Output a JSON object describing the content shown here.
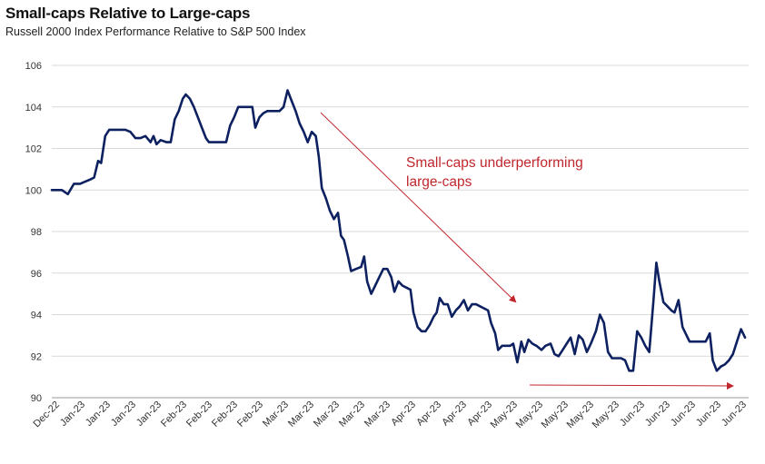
{
  "chart_data": {
    "type": "line",
    "title": "Small-caps Relative to Large-caps",
    "subtitle": "Russell 2000 Index Performance Relative to S&P 500 Index",
    "xlabel": "",
    "ylabel": "",
    "ylim": [
      90,
      106
    ],
    "yticks": [
      "106",
      "104",
      "102",
      "100",
      "98",
      "96",
      "94",
      "92",
      "90"
    ],
    "xticks": [
      "Dec-22",
      "Jan-23",
      "Jan-23",
      "Jan-23",
      "Jan-23",
      "Feb-23",
      "Feb-23",
      "Feb-23",
      "Feb-23",
      "Mar-23",
      "Mar-23",
      "Mar-23",
      "Mar-23",
      "Mar-23",
      "Apr-23",
      "Apr-23",
      "Apr-23",
      "Apr-23",
      "May-23",
      "May-23",
      "May-23",
      "May-23",
      "May-23",
      "Jun-23",
      "Jun-23",
      "Jun-23",
      "Jun-23",
      "Jun-23"
    ],
    "grid": true,
    "annotation": [
      "Small-caps underperforming",
      "large-caps"
    ],
    "colors": {
      "line": "#0d2060",
      "annotation": "#c0272d",
      "grid": "#d9d9d9"
    },
    "series": [
      {
        "values": [
          [
            0,
            100.0
          ],
          [
            0.5,
            100.0
          ],
          [
            1,
            100.0
          ],
          [
            1.6,
            99.8
          ],
          [
            2.2,
            100.3
          ],
          [
            2.8,
            100.3
          ],
          [
            3.3,
            100.4
          ],
          [
            3.8,
            100.5
          ],
          [
            4.2,
            100.6
          ],
          [
            4.6,
            101.4
          ],
          [
            4.9,
            101.3
          ],
          [
            5.3,
            102.6
          ],
          [
            5.7,
            102.9
          ],
          [
            6.3,
            102.9
          ],
          [
            6.8,
            102.9
          ],
          [
            7.3,
            102.9
          ],
          [
            7.8,
            102.8
          ],
          [
            8.3,
            102.5
          ],
          [
            8.8,
            102.5
          ],
          [
            9.3,
            102.6
          ],
          [
            9.8,
            102.3
          ],
          [
            10.1,
            102.6
          ],
          [
            10.4,
            102.2
          ],
          [
            10.8,
            102.4
          ],
          [
            11.4,
            102.3
          ],
          [
            11.8,
            102.3
          ],
          [
            12.2,
            103.4
          ],
          [
            12.6,
            103.8
          ],
          [
            13.0,
            104.4
          ],
          [
            13.3,
            104.6
          ],
          [
            13.7,
            104.4
          ],
          [
            14.1,
            104.0
          ],
          [
            14.5,
            103.5
          ],
          [
            14.9,
            103.0
          ],
          [
            15.3,
            102.5
          ],
          [
            15.6,
            102.3
          ],
          [
            16.2,
            102.3
          ],
          [
            16.8,
            102.3
          ],
          [
            17.3,
            102.3
          ],
          [
            17.7,
            103.1
          ],
          [
            18.1,
            103.5
          ],
          [
            18.5,
            104.0
          ],
          [
            19.0,
            104.0
          ],
          [
            19.5,
            104.0
          ],
          [
            19.9,
            104.0
          ],
          [
            20.2,
            103.0
          ],
          [
            20.6,
            103.5
          ],
          [
            21.0,
            103.7
          ],
          [
            21.4,
            103.8
          ],
          [
            22.0,
            103.8
          ],
          [
            22.6,
            103.8
          ],
          [
            23.0,
            104.0
          ],
          [
            23.4,
            104.8
          ],
          [
            23.8,
            104.3
          ],
          [
            24.2,
            103.8
          ],
          [
            24.6,
            103.2
          ],
          [
            25.0,
            102.8
          ],
          [
            25.4,
            102.3
          ],
          [
            25.8,
            102.8
          ],
          [
            26.2,
            102.6
          ],
          [
            26.5,
            101.6
          ],
          [
            26.8,
            100.1
          ],
          [
            27.2,
            99.6
          ],
          [
            27.6,
            99.0
          ],
          [
            28.0,
            98.6
          ],
          [
            28.4,
            98.9
          ],
          [
            28.7,
            97.8
          ],
          [
            29.0,
            97.6
          ],
          [
            29.4,
            96.8
          ],
          [
            29.7,
            96.1
          ],
          [
            30.2,
            96.2
          ],
          [
            30.7,
            96.3
          ],
          [
            31.0,
            96.8
          ],
          [
            31.3,
            95.6
          ],
          [
            31.7,
            95.0
          ],
          [
            32.1,
            95.4
          ],
          [
            32.5,
            95.8
          ],
          [
            32.9,
            96.2
          ],
          [
            33.3,
            96.2
          ],
          [
            33.7,
            95.8
          ],
          [
            34.0,
            95.1
          ],
          [
            34.4,
            95.6
          ],
          [
            34.8,
            95.4
          ],
          [
            35.2,
            95.3
          ],
          [
            35.6,
            95.2
          ],
          [
            35.9,
            94.1
          ],
          [
            36.3,
            93.4
          ],
          [
            36.7,
            93.2
          ],
          [
            37.1,
            93.2
          ],
          [
            37.5,
            93.5
          ],
          [
            37.9,
            93.9
          ],
          [
            38.2,
            94.1
          ],
          [
            38.5,
            94.8
          ],
          [
            38.9,
            94.5
          ],
          [
            39.3,
            94.5
          ],
          [
            39.7,
            93.9
          ],
          [
            40.1,
            94.2
          ],
          [
            40.5,
            94.4
          ],
          [
            40.9,
            94.7
          ],
          [
            41.3,
            94.2
          ],
          [
            41.7,
            94.5
          ],
          [
            42.1,
            94.5
          ],
          [
            42.5,
            94.4
          ],
          [
            42.9,
            94.3
          ],
          [
            43.3,
            94.2
          ],
          [
            43.6,
            93.6
          ],
          [
            44.0,
            93.1
          ],
          [
            44.3,
            92.3
          ],
          [
            44.7,
            92.5
          ],
          [
            45.1,
            92.5
          ],
          [
            45.5,
            92.5
          ],
          [
            45.8,
            92.6
          ],
          [
            46.2,
            91.7
          ],
          [
            46.6,
            92.7
          ],
          [
            46.9,
            92.2
          ],
          [
            47.3,
            92.8
          ],
          [
            47.7,
            92.6
          ],
          [
            48.1,
            92.5
          ],
          [
            48.6,
            92.3
          ],
          [
            49.0,
            92.5
          ],
          [
            49.5,
            92.6
          ],
          [
            49.9,
            92.1
          ],
          [
            50.3,
            92.0
          ],
          [
            50.7,
            92.3
          ],
          [
            51.1,
            92.6
          ],
          [
            51.5,
            92.9
          ],
          [
            51.9,
            92.1
          ],
          [
            52.3,
            93.0
          ],
          [
            52.7,
            92.8
          ],
          [
            53.1,
            92.2
          ],
          [
            53.5,
            92.6
          ],
          [
            54.0,
            93.2
          ],
          [
            54.4,
            94.0
          ],
          [
            54.8,
            93.6
          ],
          [
            55.2,
            92.2
          ],
          [
            55.6,
            91.9
          ],
          [
            56.0,
            91.9
          ],
          [
            56.5,
            91.9
          ],
          [
            56.9,
            91.8
          ],
          [
            57.3,
            91.3
          ],
          [
            57.7,
            91.3
          ],
          [
            58.1,
            93.2
          ],
          [
            58.5,
            92.9
          ],
          [
            58.9,
            92.5
          ],
          [
            59.3,
            92.2
          ],
          [
            59.7,
            94.6
          ],
          [
            60.0,
            96.5
          ],
          [
            60.3,
            95.6
          ],
          [
            60.7,
            94.6
          ],
          [
            61.1,
            94.4
          ],
          [
            61.5,
            94.2
          ],
          [
            61.8,
            94.1
          ],
          [
            62.2,
            94.7
          ],
          [
            62.6,
            93.4
          ],
          [
            63.0,
            93.0
          ],
          [
            63.3,
            92.7
          ],
          [
            63.8,
            92.7
          ],
          [
            64.3,
            92.7
          ],
          [
            64.9,
            92.7
          ],
          [
            65.3,
            93.1
          ],
          [
            65.6,
            91.8
          ],
          [
            66.0,
            91.3
          ],
          [
            66.4,
            91.5
          ],
          [
            66.8,
            91.6
          ],
          [
            67.2,
            91.8
          ],
          [
            67.6,
            92.1
          ],
          [
            68.0,
            92.7
          ],
          [
            68.4,
            93.3
          ],
          [
            68.8,
            92.9
          ]
        ]
      }
    ]
  }
}
